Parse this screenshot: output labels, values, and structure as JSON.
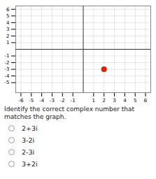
{
  "chart_data": {
    "type": "scatter",
    "title": "Identify the correct complex number that matches the graph.",
    "x": [
      2
    ],
    "values": [
      -3
    ],
    "color": "#dd2200",
    "xlim": [
      -6.5,
      6.5
    ],
    "ylim": [
      -6.5,
      6.5
    ],
    "xticks": [
      -6,
      -5,
      -4,
      -3,
      -2,
      -1,
      1,
      2,
      3,
      4,
      5,
      6
    ],
    "yticks": [
      -5,
      -4,
      -3,
      -2,
      -1,
      1,
      2,
      3,
      4,
      5,
      6
    ],
    "grid": true,
    "annotations": [
      "2+3i",
      "3-2i",
      "2-3i",
      "3+2i"
    ]
  }
}
